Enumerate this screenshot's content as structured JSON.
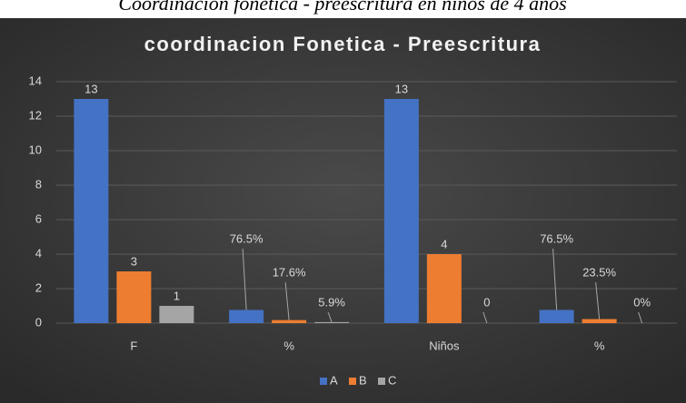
{
  "caption": "Coordinacion fonetica - preescritura en niños de 4 años",
  "chart_data": {
    "type": "bar",
    "title": "coordinacion Fonetica - Preescritura",
    "categories": [
      "F",
      "%",
      "Niños",
      "%"
    ],
    "series": [
      {
        "name": "A",
        "color": "#4472c4",
        "values": [
          13,
          0.765,
          13,
          0.765
        ],
        "value_labels": [
          "13",
          "76.5%",
          "13",
          "76.5%"
        ]
      },
      {
        "name": "B",
        "color": "#ed7d31",
        "values": [
          3,
          0.176,
          4,
          0.235
        ],
        "value_labels": [
          "3",
          "17.6%",
          "4",
          "23.5%"
        ]
      },
      {
        "name": "C",
        "color": "#a5a5a5",
        "values": [
          1,
          0.059,
          0,
          0
        ],
        "value_labels": [
          "1",
          "5.9%",
          "0",
          "0%"
        ]
      }
    ],
    "ylim": [
      0,
      14
    ],
    "yticks": [
      0,
      2,
      4,
      6,
      8,
      10,
      12,
      14
    ],
    "grid": true,
    "legend": "bottom"
  }
}
